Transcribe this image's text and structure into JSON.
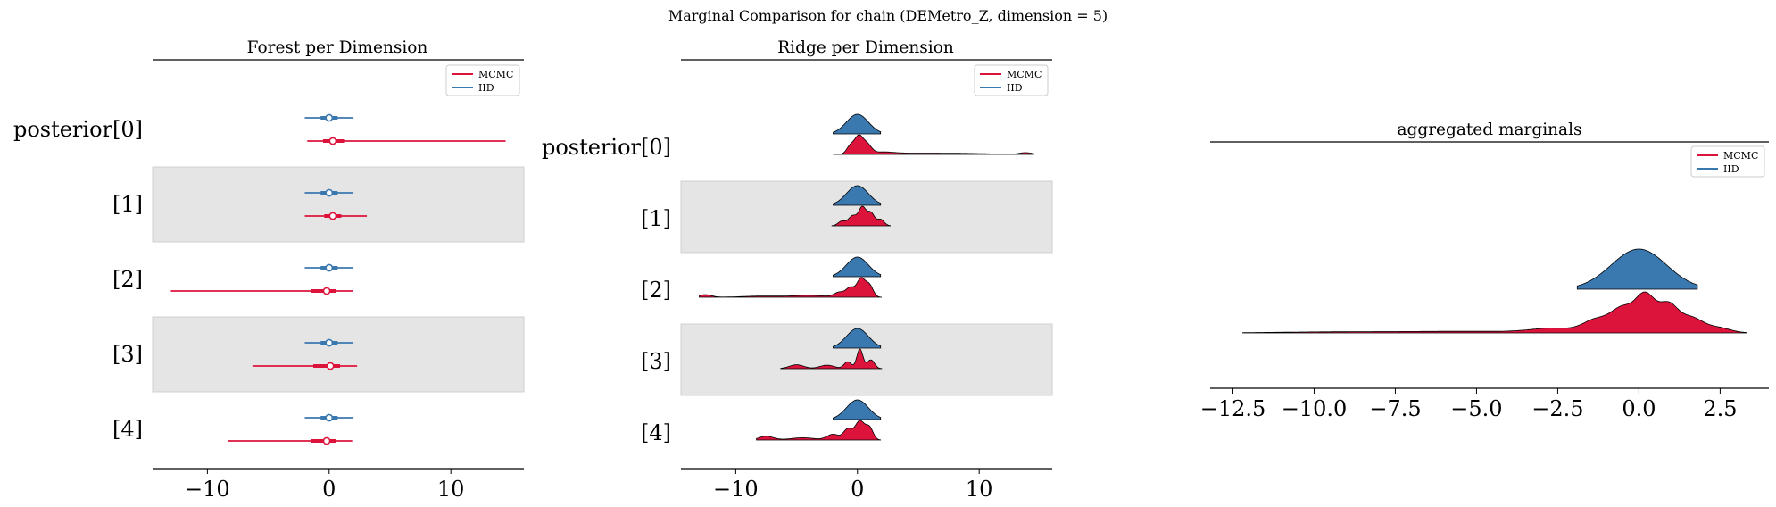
{
  "suptitle": "Marginal Comparison for chain (DEMetro_Z, dimension = 5)",
  "colors": {
    "mcmc": "#dc143c",
    "iid": "#3a78b0",
    "band": "#e5e5e5"
  },
  "chart_data": [
    {
      "type": "forest",
      "title": "Forest per Dimension",
      "xlim": [
        -14.5,
        16
      ],
      "xticks": [
        -10,
        0,
        10
      ],
      "tick_labels": [
        "−10",
        "0",
        "10"
      ],
      "row_labels": [
        "posterior[0]",
        "[1]",
        "[2]",
        "[3]",
        "[4]"
      ],
      "legend": {
        "position": "top-right",
        "entries": [
          "MCMC",
          "IID"
        ]
      },
      "series": [
        {
          "name": "MCMC",
          "rows": [
            {
              "lo": -1.8,
              "q1": -0.5,
              "median": 0.3,
              "q3": 1.3,
              "hi": 14.5
            },
            {
              "lo": -2.0,
              "q1": -0.4,
              "median": 0.3,
              "q3": 1.0,
              "hi": 3.1
            },
            {
              "lo": -13.0,
              "q1": -1.5,
              "median": -0.2,
              "q3": 0.6,
              "hi": 2.0
            },
            {
              "lo": -6.3,
              "q1": -1.3,
              "median": 0.1,
              "q3": 0.9,
              "hi": 2.3
            },
            {
              "lo": -8.3,
              "q1": -1.5,
              "median": -0.2,
              "q3": 0.6,
              "hi": 1.9
            }
          ]
        },
        {
          "name": "IID",
          "rows": [
            {
              "lo": -2.0,
              "q1": -0.7,
              "median": 0.0,
              "q3": 0.7,
              "hi": 2.0
            },
            {
              "lo": -2.0,
              "q1": -0.7,
              "median": 0.0,
              "q3": 0.7,
              "hi": 2.0
            },
            {
              "lo": -2.0,
              "q1": -0.7,
              "median": 0.0,
              "q3": 0.7,
              "hi": 2.0
            },
            {
              "lo": -2.0,
              "q1": -0.7,
              "median": 0.0,
              "q3": 0.7,
              "hi": 2.0
            },
            {
              "lo": -2.0,
              "q1": -0.7,
              "median": 0.0,
              "q3": 0.7,
              "hi": 2.0
            }
          ]
        }
      ]
    },
    {
      "type": "ridge",
      "title": "Ridge per Dimension",
      "xlim": [
        -14.5,
        16
      ],
      "xticks": [
        -10,
        0,
        10
      ],
      "tick_labels": [
        "−10",
        "0",
        "10"
      ],
      "row_labels": [
        "posterior[0]",
        "[1]",
        "[2]",
        "[3]",
        "[4]"
      ],
      "legend": {
        "position": "top-right",
        "entries": [
          "MCMC",
          "IID"
        ]
      },
      "series": [
        {
          "name": "IID",
          "rows": [
            {
              "range": [
                -2.0,
                1.9
              ],
              "peaks": [
                [
                  0.0,
                  1.0,
                  0.9
                ]
              ]
            },
            {
              "range": [
                -2.0,
                1.9
              ],
              "peaks": [
                [
                  0.0,
                  1.0,
                  0.9
                ]
              ]
            },
            {
              "range": [
                -2.0,
                1.9
              ],
              "peaks": [
                [
                  0.0,
                  1.0,
                  0.9
                ]
              ]
            },
            {
              "range": [
                -2.0,
                1.9
              ],
              "peaks": [
                [
                  0.0,
                  1.0,
                  0.9
                ]
              ]
            },
            {
              "range": [
                -2.0,
                1.9
              ],
              "peaks": [
                [
                  0.0,
                  1.0,
                  0.9
                ]
              ]
            }
          ]
        },
        {
          "name": "MCMC",
          "rows": [
            {
              "range": [
                -2.0,
                14.5
              ],
              "peaks": [
                [
                  0.1,
                  1.0,
                  0.35
                ],
                [
                  0.8,
                  0.5,
                  0.35
                ],
                [
                  -0.6,
                  0.45,
                  0.3
                ],
                [
                  2.0,
                  0.12,
                  1.0
                ],
                [
                  5.0,
                  0.07,
                  2.0
                ],
                [
                  9.0,
                  0.05,
                  2.0
                ],
                [
                  13.8,
                  0.1,
                  0.5
                ]
              ]
            },
            {
              "range": [
                -2.1,
                2.7
              ],
              "peaks": [
                [
                  0.4,
                  1.0,
                  0.3
                ],
                [
                  1.1,
                  0.7,
                  0.3
                ],
                [
                  -0.4,
                  0.55,
                  0.35
                ],
                [
                  -1.3,
                  0.25,
                  0.3
                ],
                [
                  1.9,
                  0.35,
                  0.3
                ]
              ]
            },
            {
              "range": [
                -13.0,
                2.0
              ],
              "peaks": [
                [
                  0.3,
                  1.0,
                  0.35
                ],
                [
                  1.0,
                  0.6,
                  0.3
                ],
                [
                  -0.6,
                  0.5,
                  0.35
                ],
                [
                  -1.5,
                  0.25,
                  0.4
                ],
                [
                  -4.0,
                  0.1,
                  1.5
                ],
                [
                  -8.0,
                  0.06,
                  1.5
                ],
                [
                  -12.5,
                  0.14,
                  0.5
                ]
              ]
            },
            {
              "range": [
                -6.3,
                2.0
              ],
              "peaks": [
                [
                  0.2,
                  1.0,
                  0.25
                ],
                [
                  1.1,
                  0.45,
                  0.3
                ],
                [
                  -0.8,
                  0.35,
                  0.3
                ],
                [
                  -2.5,
                  0.18,
                  0.6
                ],
                [
                  -5.0,
                  0.2,
                  0.6
                ]
              ]
            },
            {
              "range": [
                -8.3,
                1.9
              ],
              "peaks": [
                [
                  0.2,
                  1.0,
                  0.4
                ],
                [
                  1.0,
                  0.6,
                  0.3
                ],
                [
                  -0.8,
                  0.55,
                  0.35
                ],
                [
                  -2.0,
                  0.3,
                  0.5
                ],
                [
                  -4.5,
                  0.12,
                  1.0
                ],
                [
                  -7.5,
                  0.2,
                  0.6
                ]
              ]
            }
          ]
        }
      ]
    },
    {
      "type": "ridge",
      "title": "aggregated marginals",
      "xlim": [
        -13.2,
        4.0
      ],
      "xticks": [
        -12.5,
        -10.0,
        -7.5,
        -5.0,
        -2.5,
        0.0,
        2.5
      ],
      "tick_labels": [
        "−12.5",
        "−10.0",
        "−7.5",
        "−5.0",
        "−2.5",
        "0.0",
        "2.5"
      ],
      "legend": {
        "position": "top-right",
        "entries": [
          "MCMC",
          "IID"
        ]
      },
      "series": [
        {
          "name": "IID",
          "range": [
            -1.9,
            1.8
          ],
          "peaks": [
            [
              0.0,
              1.0,
              0.85
            ]
          ]
        },
        {
          "name": "MCMC",
          "range": [
            -12.2,
            3.3
          ],
          "peaks": [
            [
              0.2,
              1.0,
              0.3
            ],
            [
              0.9,
              0.75,
              0.3
            ],
            [
              -0.5,
              0.65,
              0.35
            ],
            [
              1.6,
              0.4,
              0.35
            ],
            [
              -1.3,
              0.35,
              0.4
            ],
            [
              2.4,
              0.15,
              0.4
            ],
            [
              -2.6,
              0.12,
              0.7
            ],
            [
              -5.0,
              0.04,
              1.8
            ],
            [
              -9.0,
              0.03,
              2.0
            ]
          ]
        }
      ]
    }
  ]
}
